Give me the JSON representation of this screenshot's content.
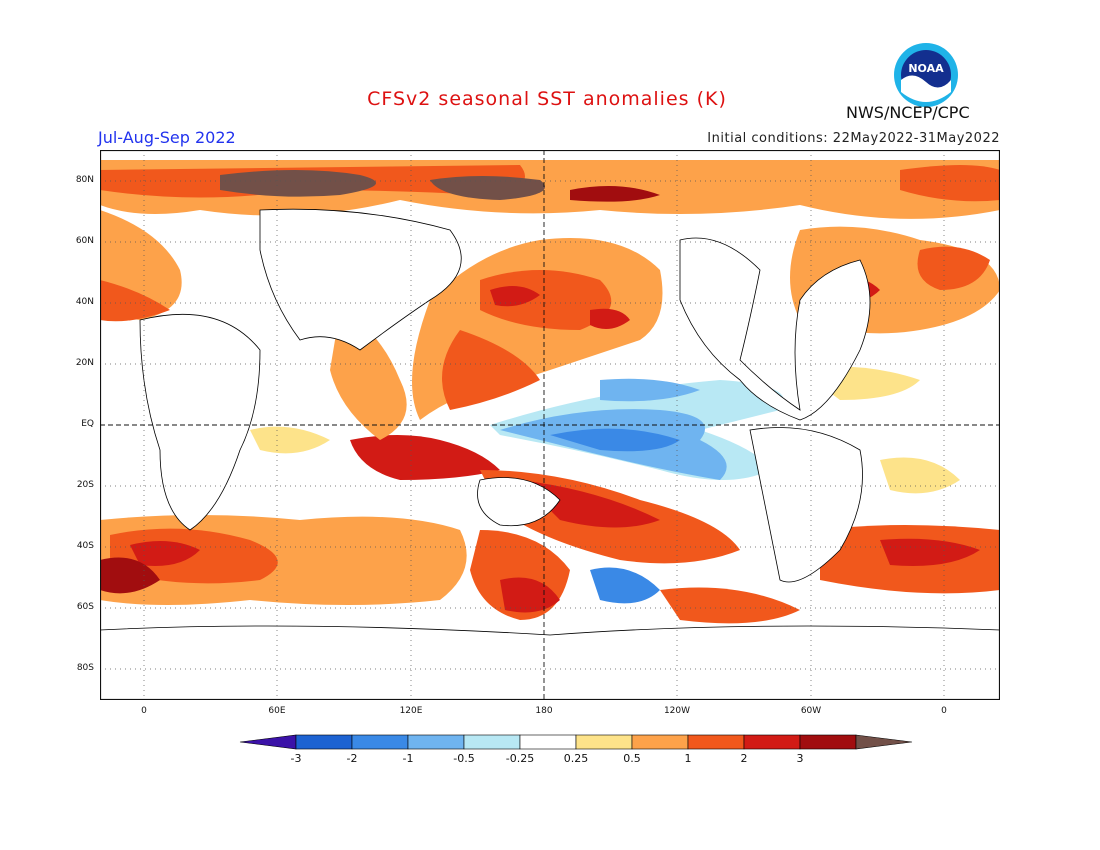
{
  "title": "CFSv2 seasonal SST anomalies (K)",
  "season": "Jul-Aug-Sep 2022",
  "init_conditions": "Initial conditions: 22May2022-31May2022",
  "organization": "NWS/NCEP/CPC",
  "logo_text": "NOAA",
  "lat_labels": [
    "80N",
    "60N",
    "40N",
    "20N",
    "EQ",
    "20S",
    "40S",
    "60S",
    "80S"
  ],
  "lon_labels": [
    "0",
    "60E",
    "120E",
    "180",
    "120W",
    "60W",
    "0"
  ],
  "colorbar": {
    "labels": [
      "-3",
      "-2",
      "-1",
      "-0.5",
      "-0.25",
      "0.25",
      "0.5",
      "1",
      "2",
      "3"
    ],
    "colors": [
      "#3b12a8",
      "#1d63d2",
      "#3a89e6",
      "#6fb4f0",
      "#b8e8f4",
      "#ffffff",
      "#fde38a",
      "#fda24a",
      "#f1581c",
      "#d21b15",
      "#a10d0f",
      "#725048"
    ]
  },
  "legend_units": "K"
}
